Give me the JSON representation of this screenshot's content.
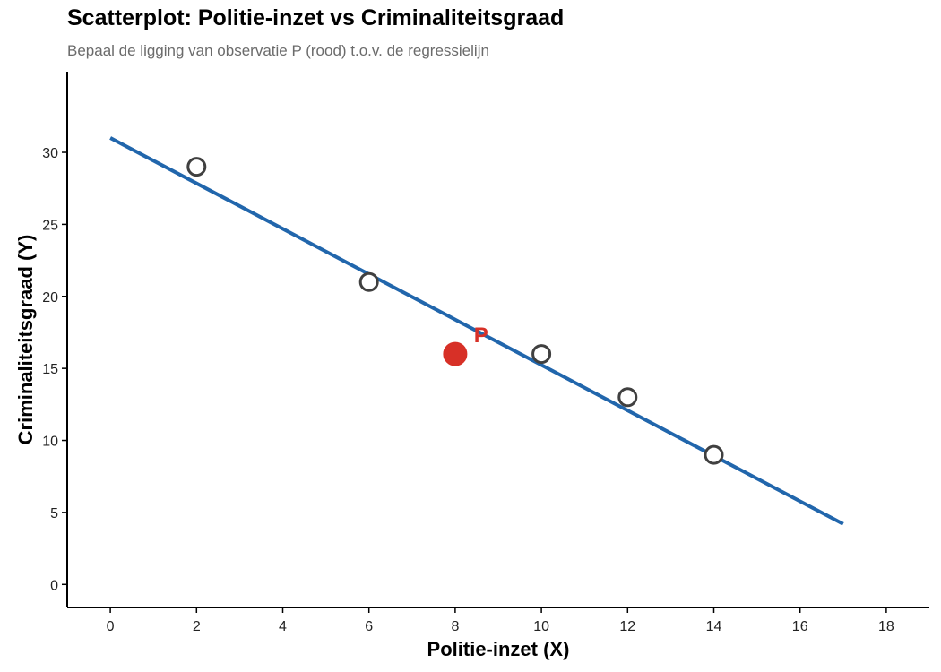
{
  "chart_data": {
    "type": "scatter",
    "title": "Scatterplot: Politie-inzet vs Criminaliteitsgraad",
    "subtitle": "Bepaal de ligging van observatie P (rood) t.o.v. de regressielijn",
    "xlabel": "Politie-inzet (X)",
    "ylabel": "Criminaliteitsgraad (Y)",
    "xlim": [
      -1,
      19
    ],
    "ylim": [
      -1.6,
      35.6
    ],
    "xticks": [
      0,
      2,
      4,
      6,
      8,
      10,
      12,
      14,
      16,
      18
    ],
    "yticks": [
      0,
      5,
      10,
      15,
      20,
      25,
      30
    ],
    "grid": false,
    "series": [
      {
        "points": [
          {
            "x": 2,
            "y": 29
          },
          {
            "x": 6,
            "y": 21
          },
          {
            "x": 10,
            "y": 16
          },
          {
            "x": 12,
            "y": 13
          },
          {
            "x": 14,
            "y": 9
          }
        ],
        "style": "hollow",
        "color": "#404040"
      },
      {
        "points": [
          {
            "x": 8,
            "y": 16
          }
        ],
        "style": "filled",
        "color": "#d73027"
      }
    ],
    "regression_line": {
      "x_start": 0,
      "y_start": 31,
      "x_end": 17,
      "y_end": 4.2,
      "color": "#2166ac"
    },
    "annotations": [
      {
        "text": "P",
        "x": 8.6,
        "y": 17.2,
        "color": "#d73027"
      }
    ]
  }
}
